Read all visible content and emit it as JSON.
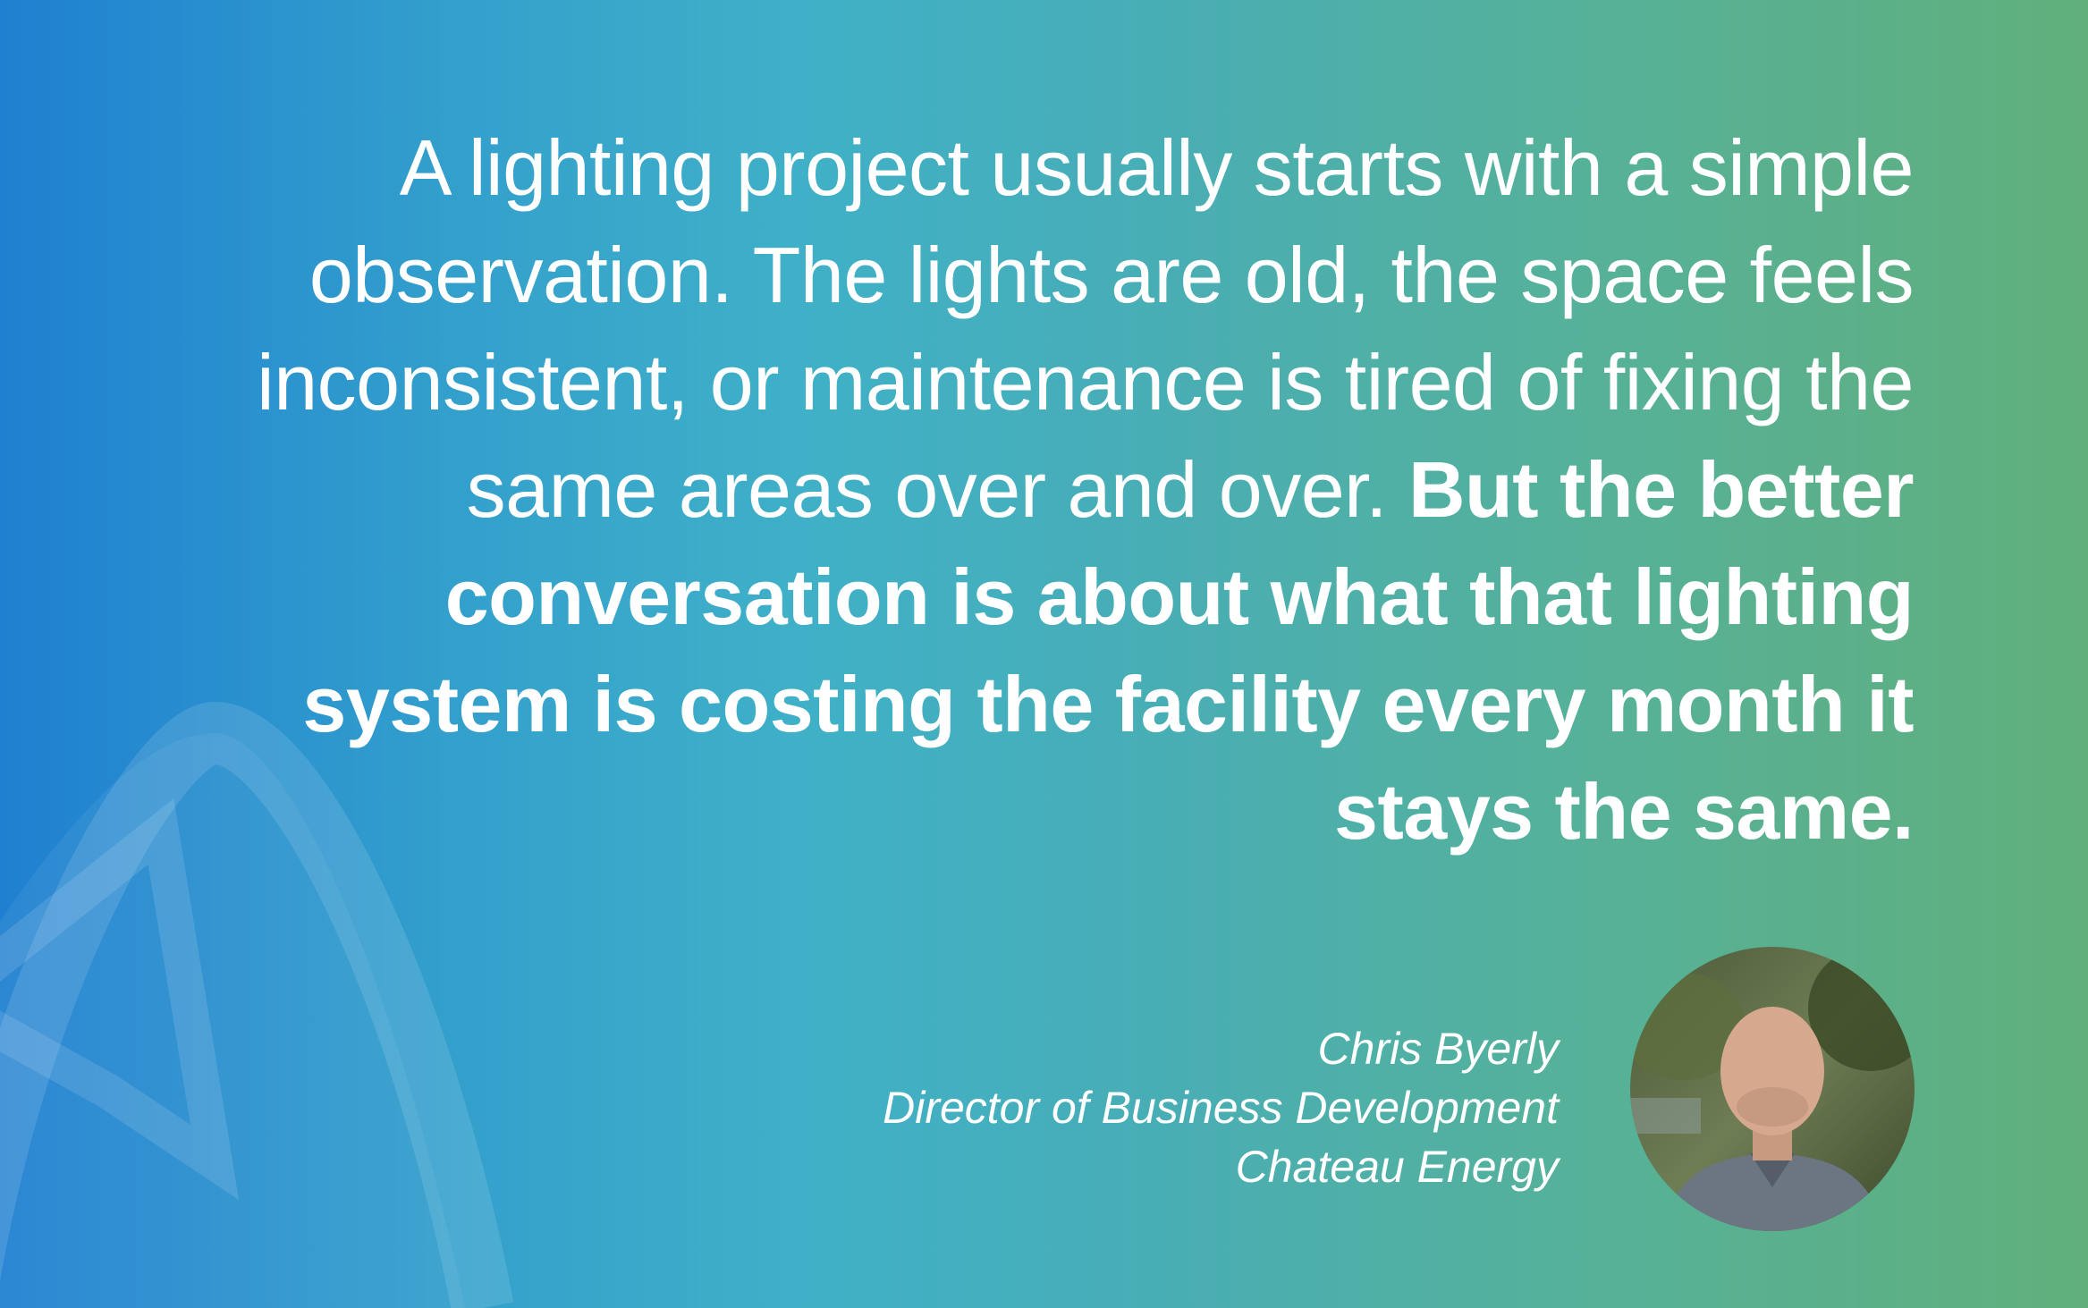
{
  "quote": {
    "regular": "A lighting project usually starts with a simple observation. The lights are old, the space feels inconsistent, or maintenance is tired of fixing the same areas over and over.",
    "emphasis": "But the better conversation is about what that lighting system is costing the facility every month it stays the same."
  },
  "attribution": {
    "name": "Chris Byerly",
    "title": "Director of Business Development",
    "company": "Chateau Energy"
  }
}
